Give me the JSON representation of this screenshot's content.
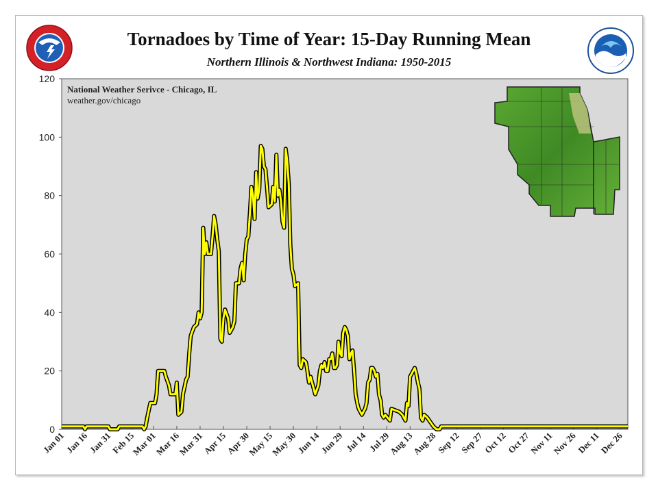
{
  "header": {
    "title": "Tornadoes by Time of Year:  15-Day Running Mean",
    "subtitle": "Northern Illinois & Northwest Indiana:  1950-2015"
  },
  "credit": {
    "line1": "National Weather Serivce - Chicago, IL",
    "line2": "weather.gov/chicago"
  },
  "logos": {
    "left": "national-weather-service-logo",
    "right": "noaa-logo"
  },
  "colors": {
    "series": "#ffff00",
    "series_outline": "#000000",
    "plot_bg": "#d9d9d9",
    "map_green": "#4f9a2e"
  },
  "chart_data": {
    "type": "line",
    "title": "Tornadoes by Time of Year:  15-Day Running Mean",
    "xlabel": "",
    "ylabel": "",
    "ylim": [
      0,
      120
    ],
    "yticks": [
      0,
      20,
      40,
      60,
      80,
      100,
      120
    ],
    "xlim": [
      1,
      365
    ],
    "xticks": [
      {
        "day": 1,
        "label": "Jan 01"
      },
      {
        "day": 16,
        "label": "Jan 16"
      },
      {
        "day": 31,
        "label": "Jan 31"
      },
      {
        "day": 46,
        "label": "Feb 15"
      },
      {
        "day": 60,
        "label": "Mar 01"
      },
      {
        "day": 75,
        "label": "Mar 16"
      },
      {
        "day": 90,
        "label": "Mar 31"
      },
      {
        "day": 105,
        "label": "Apr 15"
      },
      {
        "day": 120,
        "label": "Apr 30"
      },
      {
        "day": 135,
        "label": "May 15"
      },
      {
        "day": 150,
        "label": "May 30"
      },
      {
        "day": 165,
        "label": "Jun 14"
      },
      {
        "day": 180,
        "label": "Jun 29"
      },
      {
        "day": 195,
        "label": "Jul 14"
      },
      {
        "day": 210,
        "label": "Jul 29"
      },
      {
        "day": 225,
        "label": "Aug 13"
      },
      {
        "day": 240,
        "label": "Aug 28"
      },
      {
        "day": 255,
        "label": "Sep 12"
      },
      {
        "day": 270,
        "label": "Sep 27"
      },
      {
        "day": 285,
        "label": "Oct 12"
      },
      {
        "day": 300,
        "label": "Oct 27"
      },
      {
        "day": 315,
        "label": "Nov 11"
      },
      {
        "day": 330,
        "label": "Nov 26"
      },
      {
        "day": 345,
        "label": "Dec 11"
      },
      {
        "day": 360,
        "label": "Dec 26"
      }
    ],
    "grid": false,
    "legend": "none",
    "series": [
      {
        "points": [
          [
            1,
            1
          ],
          [
            15,
            1
          ],
          [
            16,
            0
          ],
          [
            17,
            1
          ],
          [
            31,
            1
          ],
          [
            32,
            0
          ],
          [
            37,
            0
          ],
          [
            38,
            1
          ],
          [
            53,
            1
          ],
          [
            54,
            0
          ],
          [
            55,
            1
          ],
          [
            56,
            4
          ],
          [
            58,
            9
          ],
          [
            61,
            9
          ],
          [
            62,
            12
          ],
          [
            63,
            20
          ],
          [
            67,
            20
          ],
          [
            68,
            18
          ],
          [
            70,
            15
          ],
          [
            71,
            12
          ],
          [
            74,
            12
          ],
          [
            75,
            16
          ],
          [
            76,
            5
          ],
          [
            78,
            6
          ],
          [
            79,
            12
          ],
          [
            81,
            17
          ],
          [
            82,
            18
          ],
          [
            83,
            26
          ],
          [
            84,
            32
          ],
          [
            86,
            35
          ],
          [
            88,
            36
          ],
          [
            89,
            40
          ],
          [
            90,
            38
          ],
          [
            91,
            40
          ],
          [
            92,
            69
          ],
          [
            93,
            60
          ],
          [
            94,
            64
          ],
          [
            95,
            60
          ],
          [
            97,
            60
          ],
          [
            98,
            66
          ],
          [
            99,
            73
          ],
          [
            100,
            70
          ],
          [
            101,
            65
          ],
          [
            102,
            61
          ],
          [
            103,
            31
          ],
          [
            104,
            30
          ],
          [
            105,
            38
          ],
          [
            106,
            41
          ],
          [
            108,
            38
          ],
          [
            109,
            33
          ],
          [
            111,
            35
          ],
          [
            112,
            37
          ],
          [
            113,
            50
          ],
          [
            115,
            50
          ],
          [
            116,
            55
          ],
          [
            117,
            57
          ],
          [
            118,
            51
          ],
          [
            119,
            60
          ],
          [
            120,
            65
          ],
          [
            121,
            66
          ],
          [
            122,
            74
          ],
          [
            123,
            83
          ],
          [
            124,
            80
          ],
          [
            125,
            72
          ],
          [
            126,
            88
          ],
          [
            127,
            79
          ],
          [
            128,
            82
          ],
          [
            129,
            97
          ],
          [
            130,
            96
          ],
          [
            131,
            90
          ],
          [
            132,
            89
          ],
          [
            133,
            83
          ],
          [
            134,
            76
          ],
          [
            136,
            77
          ],
          [
            137,
            83
          ],
          [
            138,
            78
          ],
          [
            139,
            94
          ],
          [
            140,
            80
          ],
          [
            141,
            82
          ],
          [
            142,
            78
          ],
          [
            143,
            71
          ],
          [
            144,
            69
          ],
          [
            145,
            96
          ],
          [
            146,
            92
          ],
          [
            147,
            84
          ],
          [
            148,
            63
          ],
          [
            149,
            55
          ],
          [
            150,
            53
          ],
          [
            151,
            49
          ],
          [
            153,
            50
          ],
          [
            154,
            22
          ],
          [
            155,
            21
          ],
          [
            156,
            24
          ],
          [
            158,
            23
          ],
          [
            159,
            20
          ],
          [
            160,
            16
          ],
          [
            161,
            18
          ],
          [
            162,
            16
          ],
          [
            163,
            14
          ],
          [
            164,
            12
          ],
          [
            166,
            15
          ],
          [
            167,
            20
          ],
          [
            168,
            22
          ],
          [
            169,
            21
          ],
          [
            170,
            23
          ],
          [
            171,
            20
          ],
          [
            172,
            20
          ],
          [
            173,
            24
          ],
          [
            174,
            24
          ],
          [
            175,
            26
          ],
          [
            176,
            21
          ],
          [
            177,
            21
          ],
          [
            178,
            22
          ],
          [
            179,
            30
          ],
          [
            180,
            26
          ],
          [
            181,
            25
          ],
          [
            182,
            33
          ],
          [
            183,
            35
          ],
          [
            184,
            34
          ],
          [
            185,
            32
          ],
          [
            186,
            24
          ],
          [
            187,
            26
          ],
          [
            188,
            27
          ],
          [
            189,
            20
          ],
          [
            190,
            12
          ],
          [
            191,
            9
          ],
          [
            192,
            7
          ],
          [
            193,
            6
          ],
          [
            194,
            5
          ],
          [
            195,
            6
          ],
          [
            196,
            7
          ],
          [
            197,
            9
          ],
          [
            198,
            16
          ],
          [
            199,
            17
          ],
          [
            200,
            21
          ],
          [
            201,
            21
          ],
          [
            202,
            20
          ],
          [
            203,
            18
          ],
          [
            204,
            19
          ],
          [
            205,
            12
          ],
          [
            206,
            10
          ],
          [
            207,
            5
          ],
          [
            208,
            4
          ],
          [
            209,
            5
          ],
          [
            212,
            3
          ],
          [
            213,
            7
          ],
          [
            218,
            6
          ],
          [
            220,
            5
          ],
          [
            222,
            3
          ],
          [
            223,
            9
          ],
          [
            224,
            8
          ],
          [
            225,
            18
          ],
          [
            226,
            19
          ],
          [
            227,
            20
          ],
          [
            228,
            21
          ],
          [
            229,
            19
          ],
          [
            230,
            16
          ],
          [
            231,
            14
          ],
          [
            232,
            4
          ],
          [
            233,
            3
          ],
          [
            234,
            5
          ],
          [
            236,
            4
          ],
          [
            240,
            1
          ],
          [
            242,
            0
          ],
          [
            244,
            0
          ],
          [
            245,
            1
          ],
          [
            246,
            1
          ],
          [
            365,
            1
          ]
        ]
      }
    ]
  }
}
